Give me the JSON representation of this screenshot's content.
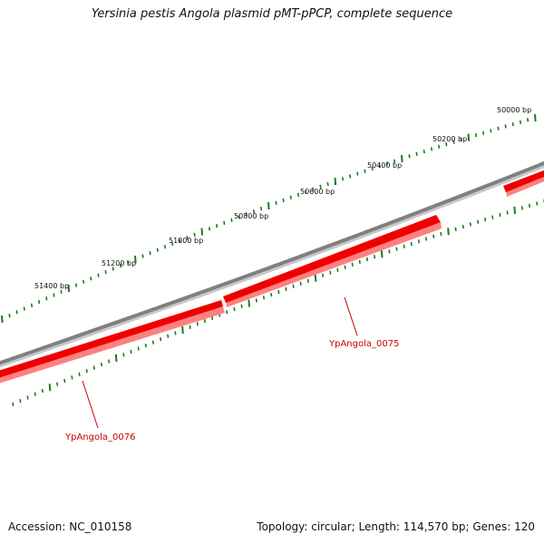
{
  "title": "Yersinia pestis Angola plasmid pMT-pPCP, complete sequence",
  "accession": "Accession: NC_010158",
  "topology": "Topology: circular; Length: 114,570 bp; Genes: 120",
  "colors": {
    "backbone": "#808080",
    "gene": "#ee0000",
    "gene_shadow": "#ff8080",
    "tick": "#1f7a1f",
    "gene_label": "#cc0000"
  },
  "scale_labels": [
    "50000 bp",
    "50200 bp",
    "50400 bp",
    "50600 bp",
    "50800 bp",
    "51000 bp",
    "51200 bp",
    "51400 bp"
  ],
  "genes": [
    {
      "name": "YpAngola_0075",
      "strand": "reverse"
    },
    {
      "name": "YpAngola_0076",
      "strand": "reverse"
    }
  ]
}
